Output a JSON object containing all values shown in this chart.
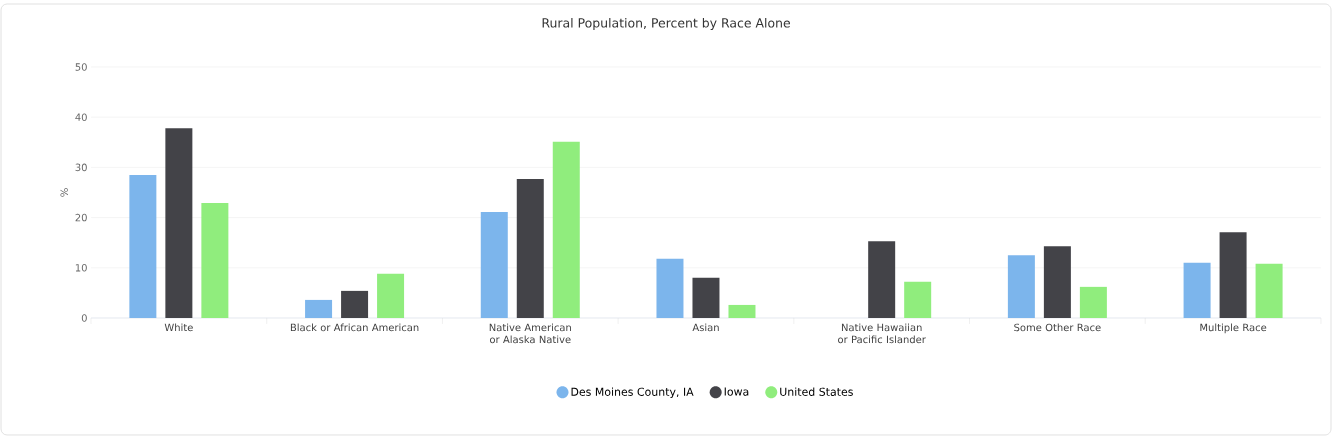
{
  "chart_data": {
    "type": "bar",
    "title": "Rural Population, Percent by Race Alone",
    "ylabel": "%",
    "categories": [
      "White",
      "Black or African American",
      "Native American or Alaska Native",
      "Asian",
      "Native Hawaiian or Pacific Islander",
      "Some Other Race",
      "Multiple Race"
    ],
    "series": [
      {
        "name": "Des Moines County, IA",
        "color": "#7cb5ec",
        "values": [
          28.5,
          3.6,
          21.1,
          11.8,
          null,
          12.5,
          11.0
        ]
      },
      {
        "name": "Iowa",
        "color": "#434348",
        "values": [
          37.8,
          5.4,
          27.7,
          8.0,
          15.3,
          14.3,
          17.1
        ]
      },
      {
        "name": "United States",
        "color": "#90ed7d",
        "values": [
          22.9,
          8.8,
          35.1,
          2.6,
          7.2,
          6.2,
          10.8
        ]
      }
    ],
    "ylim": [
      0,
      50
    ],
    "yticks": [
      0,
      10,
      20,
      30,
      40,
      50
    ],
    "grid": "y",
    "legend": "bottom"
  }
}
